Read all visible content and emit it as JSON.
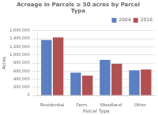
{
  "chart_data": {
    "type": "bar",
    "title": "Acreage in Parcels ≥ 50 acres by Parcel\nType",
    "x_label": "Parcel Type",
    "y_label": "Acres",
    "categories": [
      "Residential",
      "Farm",
      "Woodland",
      "Other"
    ],
    "series": [
      {
        "name": "2004",
        "color": "#5B7FC0",
        "values": [
          1370000,
          560000,
          880000,
          620000
        ]
      },
      {
        "name": "2016",
        "color": "#B05050",
        "values": [
          1430000,
          490000,
          780000,
          640000
        ]
      }
    ],
    "ylim": [
      0,
      1600000
    ],
    "yticks": [
      0,
      {
        "value": 200000,
        "label": "200,000"
      },
      {
        "value": 400000,
        "label": "400,000"
      },
      {
        "value": 600000,
        "label": "600,000"
      },
      {
        "value": 800000,
        "label": "800,000"
      },
      {
        "value": 1000000,
        "label": "1,000,000"
      },
      {
        "value": 1200000,
        "label": "1,200,000"
      },
      {
        "value": 1400000,
        "label": "1,400,000"
      },
      {
        "value": 1600000,
        "label": "1,600,000"
      }
    ],
    "grid": true,
    "legend": "upper right"
  }
}
